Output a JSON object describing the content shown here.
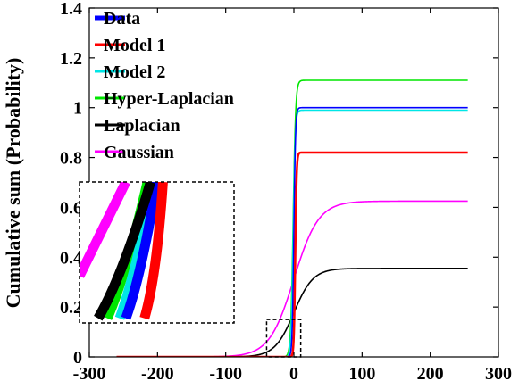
{
  "chart_data": {
    "type": "line",
    "title": "",
    "xlabel": "",
    "ylabel": "Cumulative sum (Probability)",
    "xlim": [
      -300,
      300
    ],
    "ylim": [
      0,
      1.4
    ],
    "x_ticks": [
      -300,
      -200,
      -100,
      0,
      100,
      200,
      300
    ],
    "y_ticks": [
      0,
      0.2,
      0.4,
      0.6,
      0.8,
      1,
      1.2,
      1.4
    ],
    "x_tick_labels": [
      "-300",
      "-200",
      "-100",
      "0",
      "100",
      "200",
      "300"
    ],
    "y_tick_labels": [
      "0",
      "0.2",
      "0.4",
      "0.6",
      "0.8",
      "1",
      "1.2",
      "1.4"
    ],
    "grid": false,
    "legend_position": "top-left",
    "series": [
      {
        "name": "Data",
        "color": "#0000ff",
        "curve": "sigmoid",
        "plateau": 1.0,
        "center": 0,
        "scale": 1.2
      },
      {
        "name": "Model 1",
        "color": "#ff0000",
        "curve": "sigmoid",
        "plateau": 0.82,
        "center": 2,
        "scale": 1.0
      },
      {
        "name": "Model 2",
        "color": "#00e6e6",
        "curve": "sigmoid",
        "plateau": 0.99,
        "center": -1,
        "scale": 1.5
      },
      {
        "name": "Hyper-Laplacian",
        "color": "#00e600",
        "curve": "sigmoid",
        "plateau": 1.11,
        "center": -1,
        "scale": 1.8
      },
      {
        "name": "Laplacian",
        "color": "#000000",
        "curve": "sigmoid",
        "plateau": 0.355,
        "center": 0,
        "scale": 14
      },
      {
        "name": "Gaussian",
        "color": "#ff00ff",
        "curve": "sigmoid",
        "plateau": 0.625,
        "center": 0,
        "scale": 18
      }
    ],
    "x_range": [
      -260,
      255
    ],
    "inset": {
      "zoom_box": {
        "xlim": [
          -40,
          10
        ],
        "ylim": [
          0,
          0.15
        ]
      },
      "series": [
        {
          "name": "Gaussian",
          "color": "#ff00ff",
          "points": [
            [
              -40,
              0.05
            ],
            [
              -25,
              0.15
            ]
          ]
        },
        {
          "name": "Hyper-Laplacian",
          "color": "#00e600",
          "points": [
            [
              -31,
              0.005
            ],
            [
              -25,
              0.05
            ],
            [
              -18,
              0.15
            ]
          ]
        },
        {
          "name": "Model 2",
          "color": "#00e6e6",
          "points": [
            [
              -27,
              0.005
            ],
            [
              -22,
              0.05
            ],
            [
              -16,
              0.15
            ]
          ]
        },
        {
          "name": "Data",
          "color": "#0000ff",
          "points": [
            [
              -25,
              0.005
            ],
            [
              -20,
              0.05
            ],
            [
              -15,
              0.15
            ]
          ]
        },
        {
          "name": "Laplacian",
          "color": "#000000",
          "points": [
            [
              -34,
              0.005
            ],
            [
              -26,
              0.05
            ],
            [
              -17,
              0.15
            ]
          ]
        },
        {
          "name": "Model 1",
          "color": "#ff0000",
          "points": [
            [
              -19,
              0.005
            ],
            [
              -15,
              0.05
            ],
            [
              -13,
              0.15
            ]
          ]
        }
      ]
    }
  }
}
